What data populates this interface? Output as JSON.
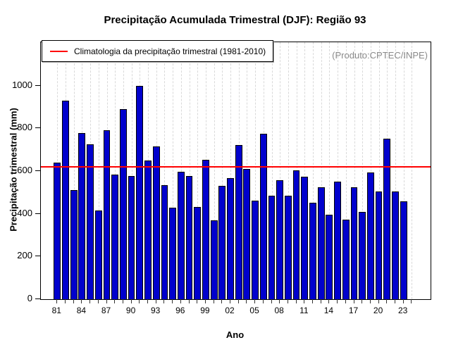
{
  "title": "Precipitação Acumulada Trimestral (DJF): Região 93",
  "annotation": "(Produto:CPTEC/INPE)",
  "chart_data": {
    "type": "bar",
    "title": "Precipitação Acumulada Trimestral (DJF): Região 93",
    "xlabel": "Ano",
    "ylabel": "Precipitação trimestral (mm)",
    "categories": [
      "81",
      "82",
      "83",
      "84",
      "85",
      "86",
      "87",
      "88",
      "89",
      "90",
      "91",
      "92",
      "93",
      "94",
      "95",
      "96",
      "97",
      "98",
      "99",
      "00",
      "01",
      "02",
      "03",
      "04",
      "05",
      "06",
      "07",
      "08",
      "09",
      "10",
      "11",
      "12",
      "13",
      "14",
      "15",
      "16",
      "17",
      "18",
      "19",
      "20",
      "21",
      "22",
      "23"
    ],
    "values": [
      640,
      928,
      511,
      777,
      726,
      414,
      790,
      584,
      890,
      578,
      1000,
      649,
      715,
      534,
      430,
      596,
      578,
      433,
      652,
      368,
      532,
      566,
      721,
      610,
      460,
      776,
      486,
      556,
      484,
      602,
      573,
      452,
      523,
      397,
      551,
      373,
      525,
      408,
      595,
      505,
      753,
      503,
      458
    ],
    "climatology": {
      "label": "Climatologia da precipitação trimestral (1981-2010)",
      "value": 620,
      "color": "#ff0000"
    },
    "y_ticks": [
      0,
      200,
      400,
      600,
      800,
      1000
    ],
    "x_tick_labels": [
      "81",
      "84",
      "87",
      "90",
      "93",
      "96",
      "99",
      "02",
      "05",
      "08",
      "11",
      "14",
      "17",
      "20",
      "23"
    ],
    "x_label_every": 3,
    "ylim": [
      0,
      1203
    ],
    "bar_color": "#0101cd",
    "bar_border_color": "#000000",
    "grid": "vertical-dashed",
    "legend_position": "top-left",
    "annotation": "(Produto:CPTEC/INPE)",
    "annotation_color": "#8a8a8a"
  }
}
